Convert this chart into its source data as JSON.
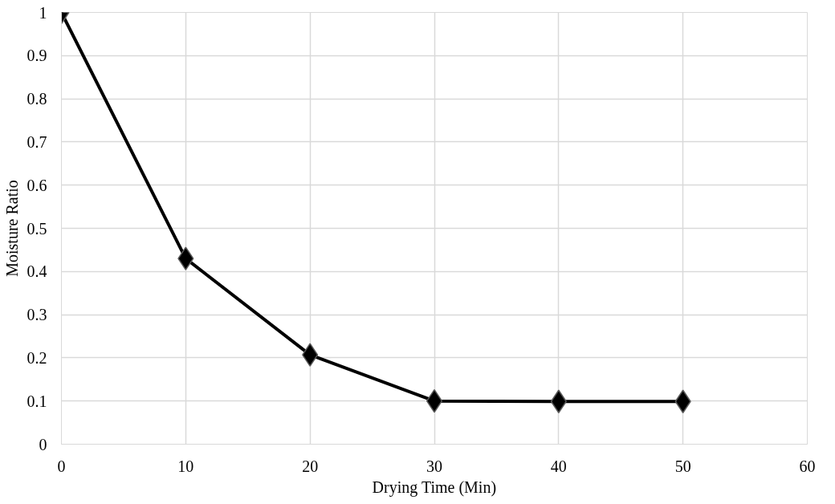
{
  "chart_data": {
    "type": "line",
    "xlabel": "Drying Time (Min)",
    "ylabel": "Moisture Ratio",
    "x": [
      0,
      10,
      20,
      30,
      40,
      50
    ],
    "series": [
      {
        "color": "#000000",
        "values": [
          1,
          0.43,
          0.207,
          0.1,
          0.099,
          0.099
        ]
      }
    ],
    "xlim": [
      0,
      60
    ],
    "xticks": [
      0,
      10,
      20,
      30,
      40,
      50,
      60
    ],
    "ylim": [
      0,
      1
    ],
    "yticks": [
      0,
      0.1,
      0.2,
      0.3,
      0.4,
      0.5,
      0.6,
      0.7,
      0.8,
      0.9,
      1
    ],
    "grid": true,
    "marker": "diamond",
    "line_style": "solid"
  }
}
